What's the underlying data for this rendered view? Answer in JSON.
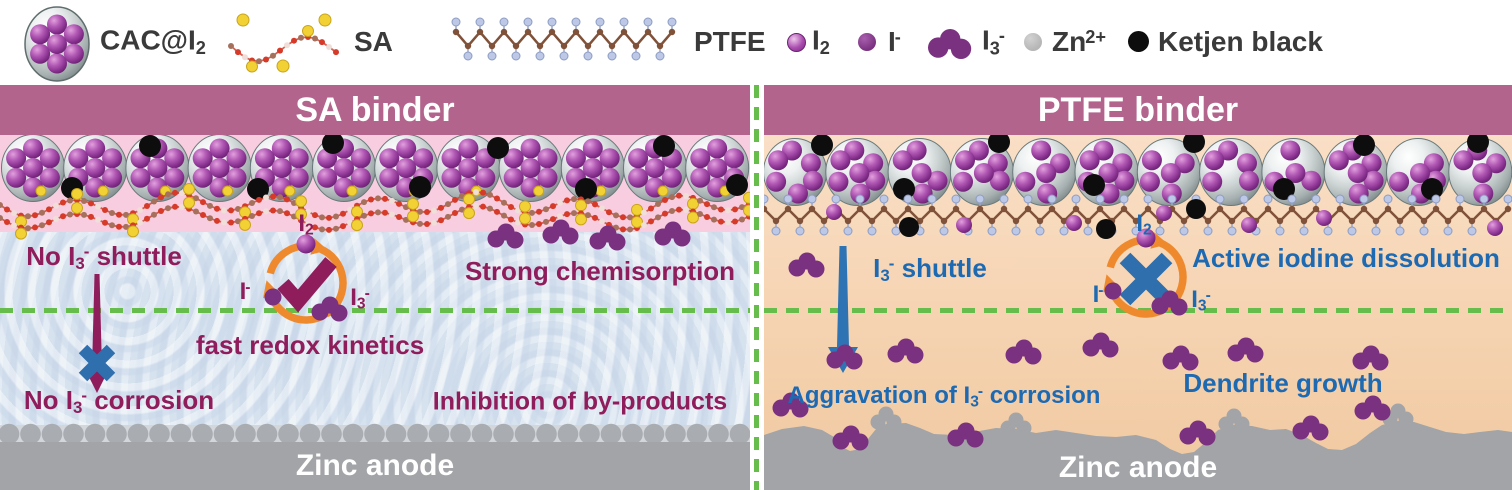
{
  "colors": {
    "header_bg": "#b2648c",
    "pink": "#f9cde0",
    "electrolyte": "#d7e2ef",
    "peach_top": "#f9dfc6",
    "peach_bottom": "#f0c89f",
    "maroon": "#8f1d5c",
    "blue": "#1e6ab2",
    "green": "#67bd4b",
    "orange": "#ee8a2d",
    "purple": "#7a3180",
    "x_blue": "#2f6fae",
    "arrow_blue": "#2e74b5",
    "zinc": "#a2a4a7",
    "zinc_ball": "#a9adb2",
    "zinc_strip": "#d3d6da",
    "ketjen": "#0d0d0d",
    "zn_ion": "#b5b5b5",
    "sa_bond": "#cc4836",
    "sa_yellow": "#f2d135",
    "ptfe_bone": "#80523a",
    "ptfe_f": "#bcc8e6"
  },
  "legend": {
    "cac": {
      "base": "CAC@I",
      "sub": "2"
    },
    "sa": "SA",
    "ptfe": "PTFE",
    "i2": {
      "base": "I",
      "sub": "2"
    },
    "iminus": {
      "base": "I",
      "sup": "-"
    },
    "i3": {
      "base": "I",
      "sub": "3",
      "sup": "-"
    },
    "zn": {
      "base": "Zn",
      "sup": "2+"
    },
    "kb": "Ketjen black"
  },
  "left": {
    "header": "SA binder",
    "no_shuttle": {
      "pre": "No I",
      "sub": "3",
      "sup": "-",
      "post": " shuttle"
    },
    "no_corrosion": {
      "pre": "No I",
      "sub": "3",
      "sup": "-",
      "post": " corrosion"
    },
    "fast_redox": "fast redox kinetics",
    "chemisorption": "Strong chemisorption",
    "inhibition": "Inhibition of by-products",
    "anode": "Zinc anode",
    "cycle": {
      "i2": {
        "base": "I",
        "sub": "2"
      },
      "iminus": {
        "base": "I",
        "sup": "-"
      },
      "i3": {
        "base": "I",
        "sub": "3",
        "sup": "-"
      }
    }
  },
  "right": {
    "header": "PTFE binder",
    "shuttle": {
      "pre": "I",
      "sub": "3",
      "sup": "-",
      "post": " shuttle"
    },
    "dissolution": "Active iodine dissolution",
    "aggravation": {
      "pre": "Aggravation of I",
      "sub": "3",
      "sup": "-",
      "post": " corrosion"
    },
    "dendrite": "Dendrite growth",
    "anode": "Zinc anode",
    "cycle": {
      "i2": {
        "base": "I",
        "sub": "2"
      },
      "iminus": {
        "base": "I",
        "sup": "-"
      },
      "i3": {
        "base": "I",
        "sub": "3",
        "sup": "-"
      }
    }
  }
}
